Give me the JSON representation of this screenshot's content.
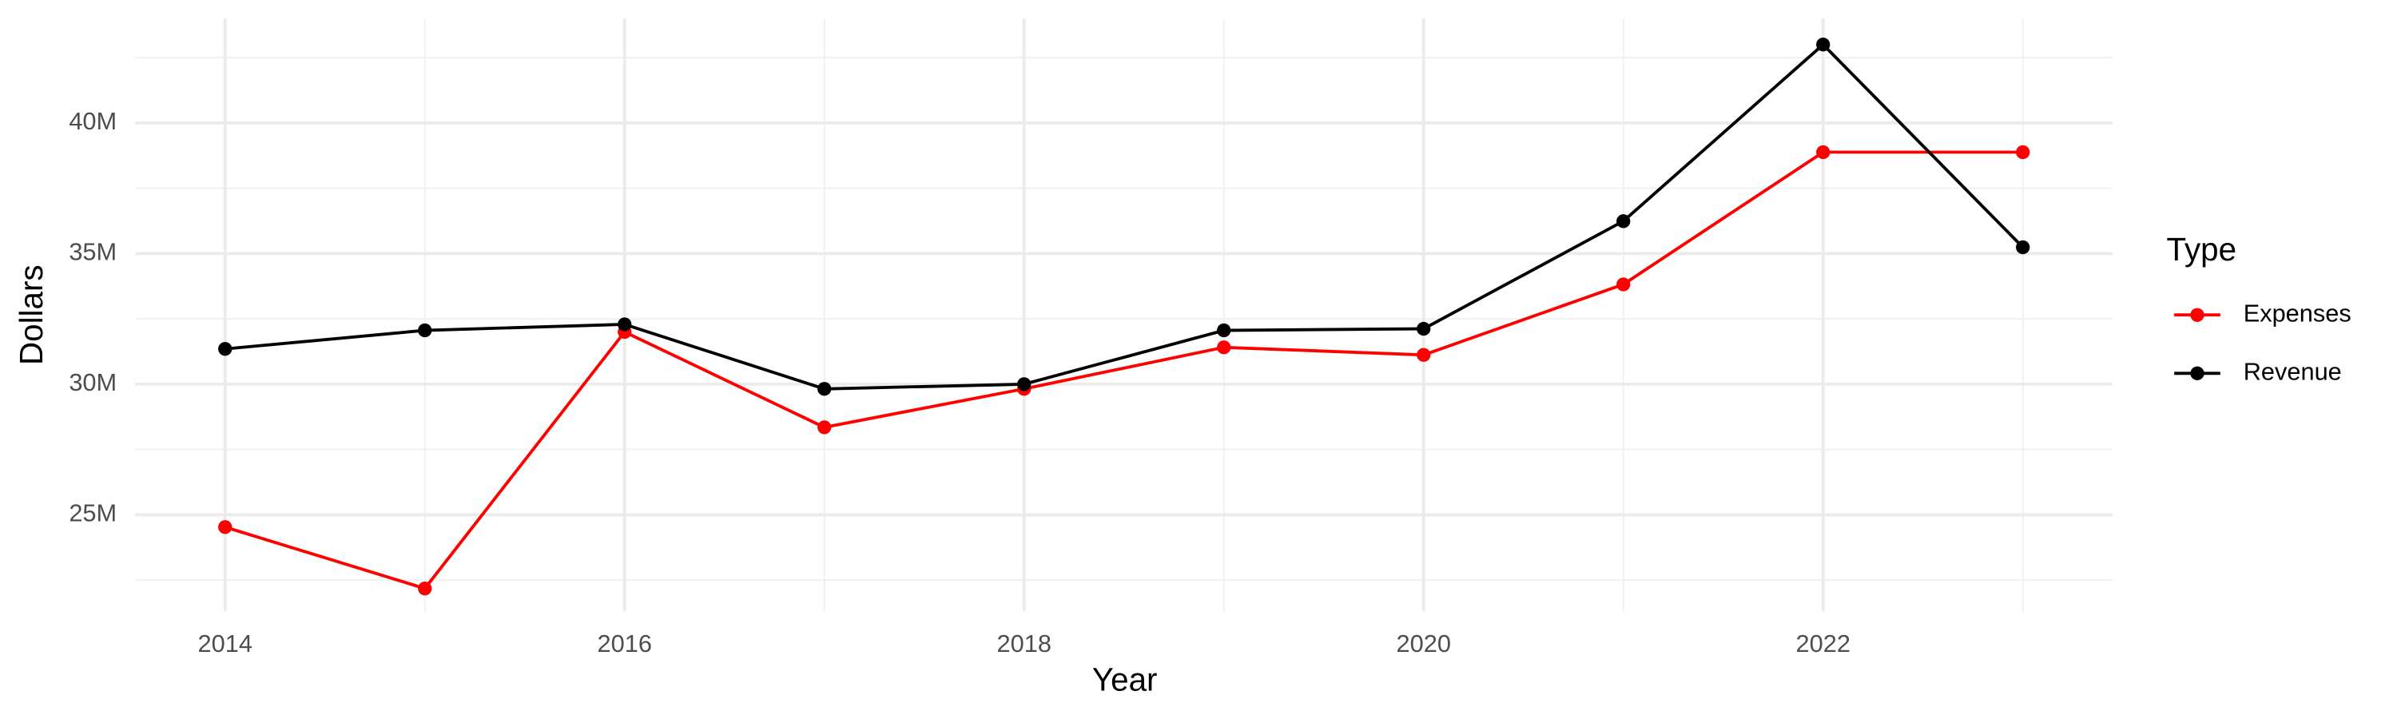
{
  "chart_data": {
    "type": "line",
    "x_label": "Year",
    "y_label": "Dollars",
    "x": [
      2014,
      2015,
      2016,
      2017,
      2018,
      2019,
      2020,
      2021,
      2022,
      2023
    ],
    "series": [
      {
        "name": "Expenses",
        "color": "#ff0000",
        "values": [
          24530000,
          22180000,
          32000000,
          28350000,
          29820000,
          31410000,
          31120000,
          33820000,
          38880000,
          38880000
        ]
      },
      {
        "name": "Revenue",
        "color": "#000000",
        "values": [
          31350000,
          32060000,
          32290000,
          29820000,
          30000000,
          32060000,
          32120000,
          36240000,
          43000000,
          35240000
        ]
      }
    ],
    "xlim": [
      2013.55,
      2023.45
    ],
    "xticks": [
      2014,
      2016,
      2018,
      2020,
      2022
    ],
    "ylim": [
      21300000,
      44000000
    ],
    "yticks": [
      {
        "value": 25000000,
        "label": "25M"
      },
      {
        "value": 30000000,
        "label": "30M"
      },
      {
        "value": 35000000,
        "label": "35M"
      },
      {
        "value": 40000000,
        "label": "40M"
      }
    ],
    "grid": true,
    "legend_title": "Type",
    "legend_position": "right"
  }
}
